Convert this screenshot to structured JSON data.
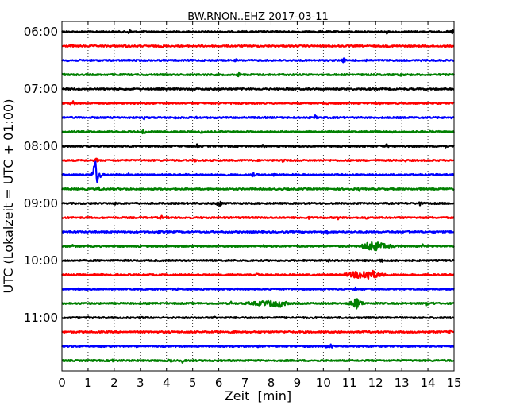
{
  "chart_data": {
    "type": "line",
    "title": "BW.RNON..EHZ 2017-03-11",
    "xlabel": "Zeit  [min]",
    "ylabel": "UTC (Lokalzeit = UTC + 01:00)",
    "xlim": [
      0,
      15
    ],
    "x_ticks": [
      "0",
      "1",
      "2",
      "3",
      "4",
      "5",
      "6",
      "7",
      "8",
      "9",
      "10",
      "11",
      "12",
      "13",
      "14",
      "15"
    ],
    "y_ticks": [
      "06:00",
      "07:00",
      "08:00",
      "09:00",
      "10:00",
      "11:00"
    ],
    "grid": "vertical-dotted",
    "trace_colors": [
      "#000000",
      "#ff0000",
      "#0000ff",
      "#008000"
    ],
    "trace_start_times": [
      "06:00",
      "06:15",
      "06:30",
      "06:45",
      "07:00",
      "07:15",
      "07:30",
      "07:45",
      "08:00",
      "08:15",
      "08:30",
      "08:45",
      "09:00",
      "09:15",
      "09:30",
      "09:45",
      "10:00",
      "10:15",
      "10:30",
      "10:45",
      "11:00",
      "11:15",
      "11:30",
      "11:45"
    ],
    "events": [
      {
        "trace": "08:30",
        "start_min": 1.1,
        "end_min": 1.6,
        "peak_min": 1.3,
        "amplitude": 2.5
      },
      {
        "trace": "09:45",
        "start_min": 11.3,
        "end_min": 13.4,
        "peak_min": 11.9,
        "amplitude": 0.9
      },
      {
        "trace": "10:15",
        "start_min": 10.5,
        "end_min": 12.8,
        "peak_min": 11.8,
        "amplitude": 0.9
      },
      {
        "trace": "10:45",
        "start_min": 6.5,
        "end_min": 9.1,
        "peak_min": 8.4,
        "amplitude": 0.6
      },
      {
        "trace": "10:45",
        "start_min": 10.9,
        "end_min": 11.8,
        "peak_min": 11.3,
        "amplitude": 0.9
      }
    ]
  }
}
